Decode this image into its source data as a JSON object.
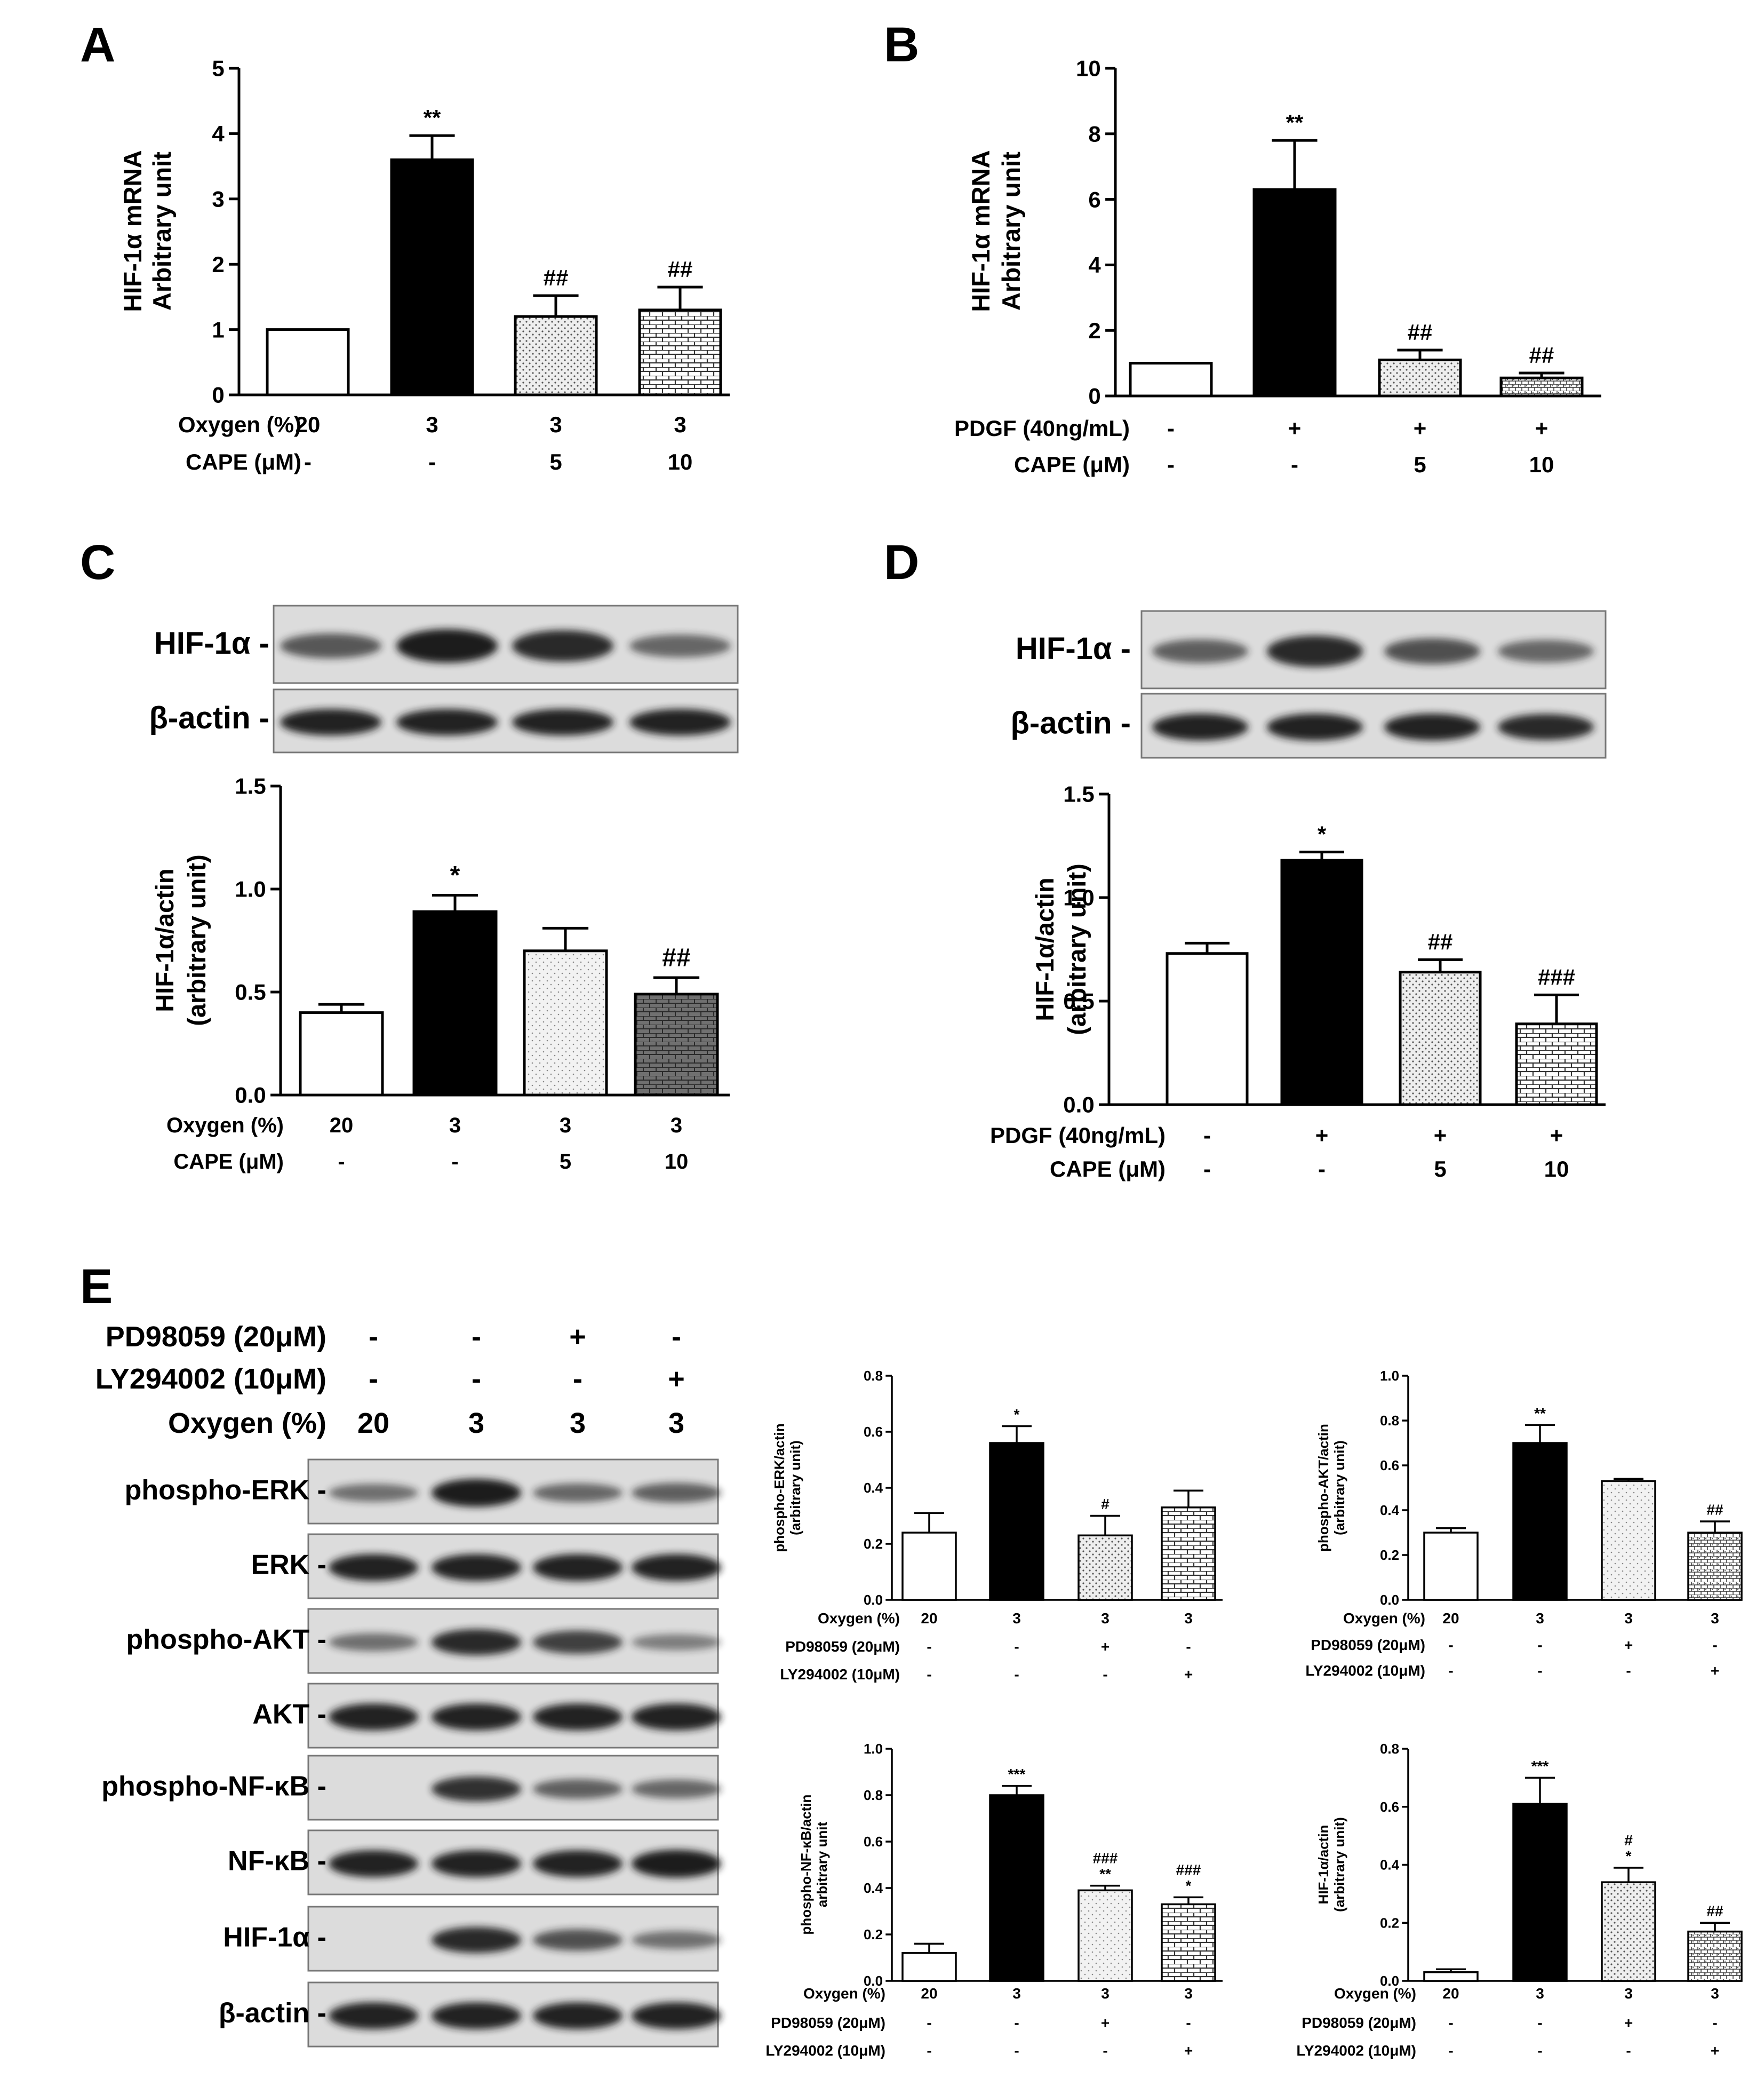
{
  "panel_letters": [
    "A",
    "B",
    "C",
    "D",
    "E"
  ],
  "fill_styles": {
    "white": "#ffffff",
    "black": "#000000",
    "dots": "#d0d0d0",
    "light_dots": "#cfcfcf",
    "brick": "#b5b5b5",
    "dark_brick": "#7a7a7a",
    "hatch": "#b5b5b5",
    "light_hatch": "#d5d5d5"
  },
  "blot_band_color": "#1a1a1a",
  "blot_background": "#dcdcdc",
  "chart_data": [
    {
      "panel": "A",
      "type": "bar",
      "ylabel": [
        "HIF-1α mRNA",
        "Arbitrary unit"
      ],
      "ylim": [
        0,
        5
      ],
      "yticks": [
        "0",
        "1",
        "2",
        "3",
        "4",
        "5"
      ],
      "values": [
        1.0,
        3.6,
        1.2,
        1.3
      ],
      "errors": [
        0,
        0.37,
        0.32,
        0.35
      ],
      "annotations": [
        [],
        [
          "**"
        ],
        [
          "##"
        ],
        [
          "##"
        ]
      ],
      "fills": [
        "white",
        "black",
        "dots",
        "brick"
      ],
      "conditions": [
        {
          "label": "Oxygen (%)",
          "values": [
            "20",
            "3",
            "3",
            "3"
          ]
        },
        {
          "label": "CAPE (μM)",
          "values": [
            "-",
            "-",
            "5",
            "10"
          ]
        }
      ]
    },
    {
      "panel": "B",
      "type": "bar",
      "ylabel": [
        "HIF-1α mRNA",
        "Arbitrary unit"
      ],
      "ylim": [
        0,
        10
      ],
      "yticks": [
        "0",
        "2",
        "4",
        "6",
        "8",
        "10"
      ],
      "values": [
        1.0,
        6.3,
        1.1,
        0.55
      ],
      "errors": [
        0,
        1.5,
        0.3,
        0.15
      ],
      "annotations": [
        [],
        [
          "**"
        ],
        [
          "##"
        ],
        [
          "##"
        ]
      ],
      "fills": [
        "white",
        "black",
        "dots",
        "hatch"
      ],
      "conditions": [
        {
          "label": "PDGF (40ng/mL)",
          "values": [
            "-",
            "+",
            "+",
            "+"
          ]
        },
        {
          "label": "CAPE (μM)",
          "values": [
            "-",
            "-",
            "5",
            "10"
          ]
        }
      ]
    },
    {
      "panel": "C",
      "type": "bar",
      "ylabel": [
        "HIF-1α/actin",
        "(arbitrary unit)"
      ],
      "ylim": [
        0,
        1.5
      ],
      "yticks": [
        "0.0",
        "0.5",
        "1.0",
        "1.5"
      ],
      "values": [
        0.4,
        0.89,
        0.7,
        0.49
      ],
      "errors": [
        0.04,
        0.08,
        0.11,
        0.08
      ],
      "annotations": [
        [],
        [
          "*"
        ],
        [],
        [
          "##"
        ]
      ],
      "fills": [
        "white",
        "black",
        "light_dots",
        "dark_brick"
      ],
      "conditions": [
        {
          "label": "Oxygen (%)",
          "values": [
            "20",
            "3",
            "3",
            "3"
          ]
        },
        {
          "label": "CAPE (μM)",
          "values": [
            "-",
            "-",
            "5",
            "10"
          ]
        }
      ]
    },
    {
      "panel": "D",
      "type": "bar",
      "ylabel": [
        "HIF-1α/actin",
        "(arbitrary unit)"
      ],
      "ylim": [
        0,
        1.5
      ],
      "yticks": [
        "0.0",
        "0.5",
        "1.0",
        "1.5"
      ],
      "values": [
        0.73,
        1.18,
        0.64,
        0.39
      ],
      "errors": [
        0.05,
        0.04,
        0.06,
        0.14
      ],
      "annotations": [
        [],
        [
          "*"
        ],
        [
          "##"
        ],
        [
          "###"
        ]
      ],
      "fills": [
        "white",
        "black",
        "dots",
        "brick"
      ],
      "conditions": [
        {
          "label": "PDGF (40ng/mL)",
          "values": [
            "-",
            "+",
            "+",
            "+"
          ]
        },
        {
          "label": "CAPE (μM)",
          "values": [
            "-",
            "-",
            "5",
            "10"
          ]
        }
      ]
    },
    {
      "panel": "E1",
      "type": "bar",
      "ylabel": [
        "phospho-ERK/actin",
        "(arbitrary unit)"
      ],
      "ylim": [
        0,
        0.8
      ],
      "yticks": [
        "0.0",
        "0.2",
        "0.4",
        "0.6",
        "0.8"
      ],
      "values": [
        0.24,
        0.56,
        0.23,
        0.33
      ],
      "errors": [
        0.07,
        0.06,
        0.07,
        0.06
      ],
      "annotations": [
        [],
        [
          "*"
        ],
        [
          "#"
        ],
        []
      ],
      "fills": [
        "white",
        "black",
        "dots",
        "brick"
      ],
      "conditions": [
        {
          "label": "Oxygen (%)",
          "values": [
            "20",
            "3",
            "3",
            "3"
          ]
        },
        {
          "label": "PD98059 (20μM)",
          "values": [
            "-",
            "-",
            "+",
            "-"
          ]
        },
        {
          "label": "LY294002 (10μM)",
          "values": [
            "-",
            "-",
            "-",
            "+"
          ]
        }
      ]
    },
    {
      "panel": "E2",
      "type": "bar",
      "ylabel": [
        "phospho-AKT/actin",
        "(arbitrary unit)"
      ],
      "ylim": [
        0,
        1.0
      ],
      "yticks": [
        "0.0",
        "0.2",
        "0.4",
        "0.6",
        "0.8",
        "1.0"
      ],
      "values": [
        0.3,
        0.7,
        0.53,
        0.3
      ],
      "errors": [
        0.02,
        0.08,
        0.01,
        0.05
      ],
      "annotations": [
        [],
        [
          "**"
        ],
        [],
        [
          "##"
        ]
      ],
      "fills": [
        "white",
        "black",
        "light_dots",
        "hatch"
      ],
      "conditions": [
        {
          "label": "Oxygen (%)",
          "values": [
            "20",
            "3",
            "3",
            "3"
          ]
        },
        {
          "label": "PD98059 (20μM)",
          "values": [
            "-",
            "-",
            "+",
            "-"
          ]
        },
        {
          "label": "LY294002 (10μM)",
          "values": [
            "-",
            "-",
            "-",
            "+"
          ]
        }
      ]
    },
    {
      "panel": "E3",
      "type": "bar",
      "ylabel": [
        "phospho-NF-κB/actin",
        "arbitrary unit"
      ],
      "ylim": [
        0,
        1.0
      ],
      "yticks": [
        "0.0",
        "0.2",
        "0.4",
        "0.6",
        "0.8",
        "1.0"
      ],
      "values": [
        0.12,
        0.8,
        0.39,
        0.33
      ],
      "errors": [
        0.04,
        0.04,
        0.02,
        0.03
      ],
      "annotations": [
        [],
        [
          "***"
        ],
        [
          "###",
          "**"
        ],
        [
          "###",
          "*"
        ]
      ],
      "fills": [
        "white",
        "black",
        "light_dots",
        "brick"
      ],
      "conditions": [
        {
          "label": "Oxygen (%)",
          "values": [
            "20",
            "3",
            "3",
            "3"
          ]
        },
        {
          "label": "PD98059 (20μM)",
          "values": [
            "-",
            "-",
            "+",
            "-"
          ]
        },
        {
          "label": "LY294002 (10μM)",
          "values": [
            "-",
            "-",
            "-",
            "+"
          ]
        }
      ]
    },
    {
      "panel": "E4",
      "type": "bar",
      "ylabel": [
        "HIF-1α/actin",
        "(arbitrary unit)"
      ],
      "ylim": [
        0,
        0.8
      ],
      "yticks": [
        "0.0",
        "0.2",
        "0.4",
        "0.6",
        "0.8"
      ],
      "values": [
        0.03,
        0.61,
        0.34,
        0.17
      ],
      "errors": [
        0.01,
        0.09,
        0.05,
        0.03
      ],
      "annotations": [
        [],
        [
          "***"
        ],
        [
          "#",
          "*"
        ],
        [
          "##"
        ]
      ],
      "fills": [
        "white",
        "black",
        "dots",
        "hatch"
      ],
      "conditions": [
        {
          "label": "Oxygen (%)",
          "values": [
            "20",
            "3",
            "3",
            "3"
          ]
        },
        {
          "label": "PD98059 (20μM)",
          "values": [
            "-",
            "-",
            "+",
            "-"
          ]
        },
        {
          "label": "LY294002 (10μM)",
          "values": [
            "-",
            "-",
            "-",
            "+"
          ]
        }
      ]
    }
  ],
  "blots": {
    "C": {
      "rows": [
        {
          "label": "HIF-1α -",
          "bands": [
            0.55,
            0.95,
            0.85,
            0.45
          ]
        },
        {
          "label": "β-actin -",
          "bands": [
            0.9,
            0.9,
            0.9,
            0.9
          ]
        }
      ]
    },
    "D": {
      "rows": [
        {
          "label": "HIF-1α -",
          "bands": [
            0.5,
            0.85,
            0.6,
            0.45
          ]
        },
        {
          "label": "β-actin -",
          "bands": [
            0.9,
            0.9,
            0.9,
            0.85
          ]
        }
      ]
    },
    "E": {
      "treatments": [
        {
          "label": "PD98059 (20μM)",
          "values": [
            "-",
            "-",
            "+",
            "-"
          ]
        },
        {
          "label": "LY294002 (10μM)",
          "values": [
            "-",
            "-",
            "-",
            "+"
          ]
        },
        {
          "label": "Oxygen (%)",
          "values": [
            "20",
            "3",
            "3",
            "3"
          ]
        }
      ],
      "rows": [
        {
          "label": "phospho-ERK -",
          "bands": [
            0.4,
            0.95,
            0.45,
            0.5
          ]
        },
        {
          "label": "ERK -",
          "bands": [
            0.9,
            0.9,
            0.9,
            0.9
          ]
        },
        {
          "label": "phospho-AKT -",
          "bands": [
            0.4,
            0.85,
            0.7,
            0.3
          ]
        },
        {
          "label": "AKT -",
          "bands": [
            0.9,
            0.9,
            0.9,
            0.9
          ]
        },
        {
          "label": "phospho-NF-κB -",
          "bands": [
            0,
            0.8,
            0.5,
            0.45
          ]
        },
        {
          "label": "NF-κB -",
          "bands": [
            0.9,
            0.9,
            0.9,
            0.95
          ]
        },
        {
          "label": "HIF-1α -",
          "bands": [
            0,
            0.85,
            0.6,
            0.4
          ]
        },
        {
          "label": "β-actin -",
          "bands": [
            0.9,
            0.9,
            0.9,
            0.9
          ]
        }
      ]
    }
  }
}
